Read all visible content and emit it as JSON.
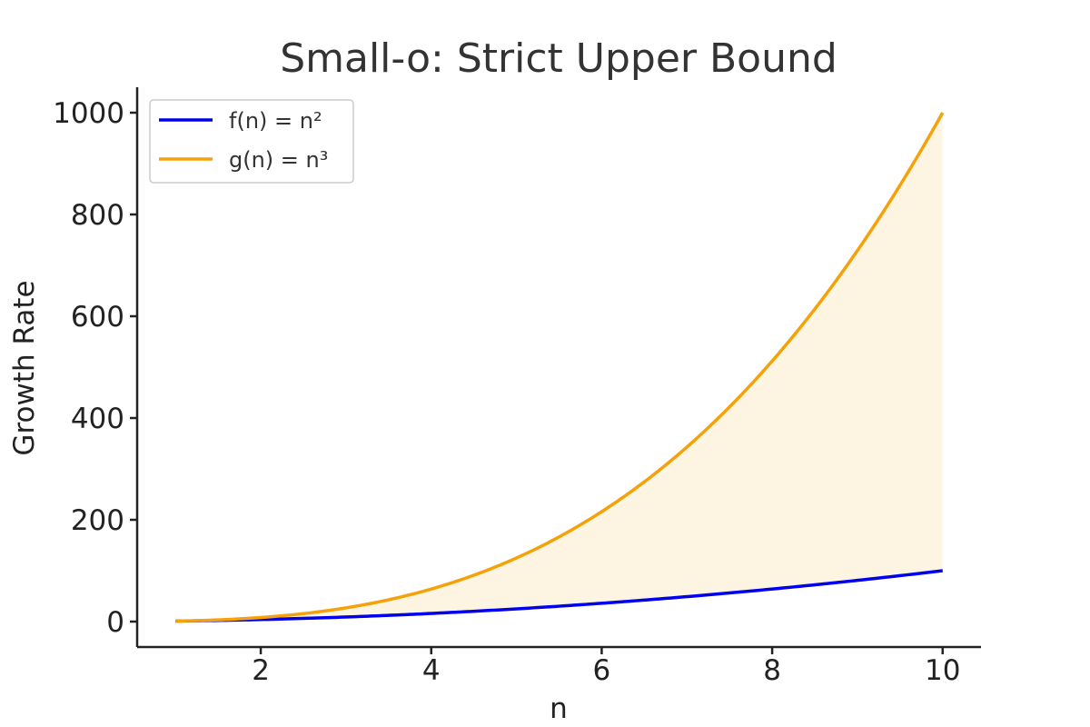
{
  "chart_data": {
    "type": "line",
    "title": "Small-o: Strict Upper Bound",
    "xlabel": "n",
    "ylabel": "Growth Rate",
    "xlim": [
      0.55,
      10.45
    ],
    "ylim": [
      -50,
      1050
    ],
    "x_ticks": [
      2,
      4,
      6,
      8,
      10
    ],
    "y_ticks": [
      0,
      200,
      400,
      600,
      800,
      1000
    ],
    "x_range": [
      1,
      10
    ],
    "grid": false,
    "legend_position": "top-left",
    "series": [
      {
        "name": "f(n) = n²",
        "formula": "n^2",
        "power": 2,
        "color": "#0000ee"
      },
      {
        "name": "g(n) = n³",
        "formula": "n^3",
        "power": 3,
        "color": "#f5a20a"
      }
    ],
    "fill_between": {
      "lower": "f(n) = n²",
      "upper": "g(n) = n³",
      "color": "#fef4e2"
    },
    "sample_points": {
      "x": [
        1,
        2,
        3,
        4,
        5,
        6,
        7,
        8,
        9,
        10
      ],
      "f": [
        1,
        4,
        9,
        16,
        25,
        36,
        49,
        64,
        81,
        100
      ],
      "g": [
        1,
        8,
        27,
        64,
        125,
        216,
        343,
        512,
        729,
        1000
      ]
    }
  }
}
